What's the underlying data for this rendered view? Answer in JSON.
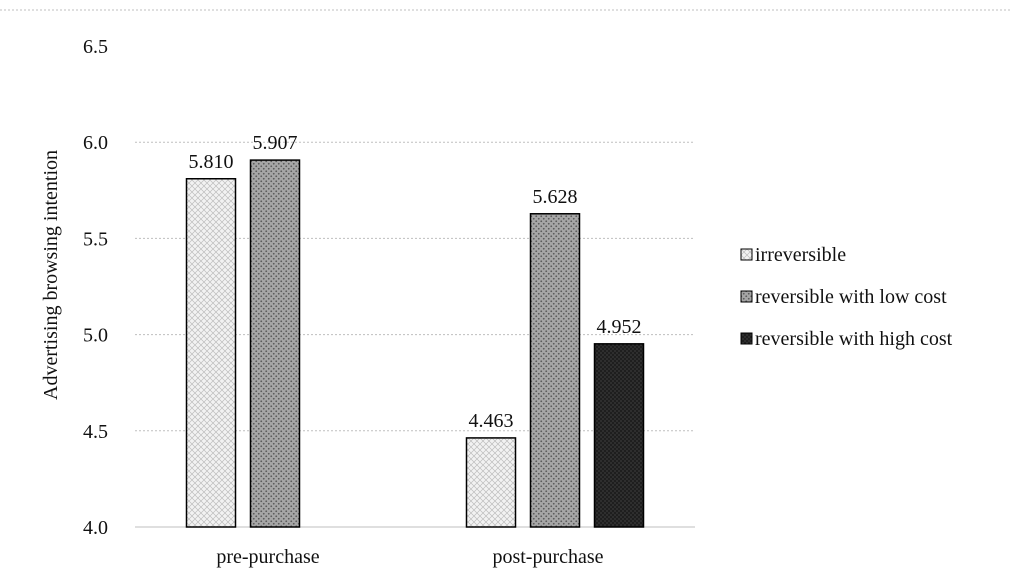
{
  "chart_data": {
    "type": "bar",
    "title": "",
    "ylabel": "Advertising browsing intention",
    "xlabel": "",
    "ylim": [
      4.0,
      6.5
    ],
    "yticks": [
      "4.0",
      "4.5",
      "5.0",
      "5.5",
      "6.0",
      "6.5"
    ],
    "grid": true,
    "legend_position": "right",
    "categories": [
      "pre-purchase",
      "post-purchase"
    ],
    "series": [
      {
        "name": "irreversible",
        "pattern": "light-crosshatch",
        "color": "#e6e6e6",
        "values": [
          5.81,
          4.463
        ],
        "labels": [
          "5.810",
          "4.463"
        ]
      },
      {
        "name": "reversible with low cost",
        "pattern": "medium-dots",
        "color": "#8c8c8c",
        "values": [
          5.907,
          5.628
        ],
        "labels": [
          "5.907",
          "5.628"
        ]
      },
      {
        "name": "reversible with high cost",
        "pattern": "dark-dots",
        "color": "#262626",
        "values": [
          null,
          4.952
        ],
        "labels": [
          null,
          "4.952"
        ]
      }
    ]
  }
}
